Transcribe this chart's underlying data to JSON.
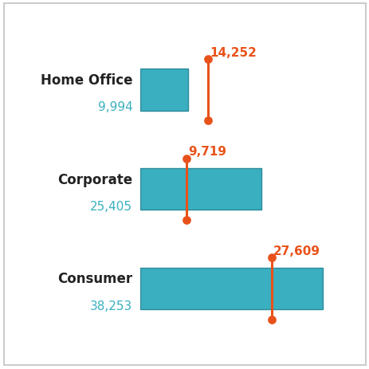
{
  "categories": [
    "Home Office",
    "Corporate",
    "Consumer"
  ],
  "bar_values": [
    9994,
    25405,
    38253
  ],
  "marker_values": [
    14252,
    9719,
    27609
  ],
  "bar_value_labels": [
    "9,994",
    "25,405",
    "38,253"
  ],
  "marker_value_labels": [
    "14,252",
    "9,719",
    "27,609"
  ],
  "bar_color": "#3AAFC0",
  "bar_edge_color": "#2d8a9a",
  "marker_color": "#E8521A",
  "label_color": "#3AAFC0",
  "category_color": "#222222",
  "bar_height": 0.42,
  "xlim": [
    0,
    42000
  ],
  "ylim": [
    -0.55,
    2.65
  ],
  "background_color": "#ffffff",
  "border_color": "#cccccc",
  "category_fontsize": 12,
  "value_fontsize": 11,
  "marker_fontsize": 11,
  "lollipop_linewidth": 2.2,
  "dot_size": 45
}
